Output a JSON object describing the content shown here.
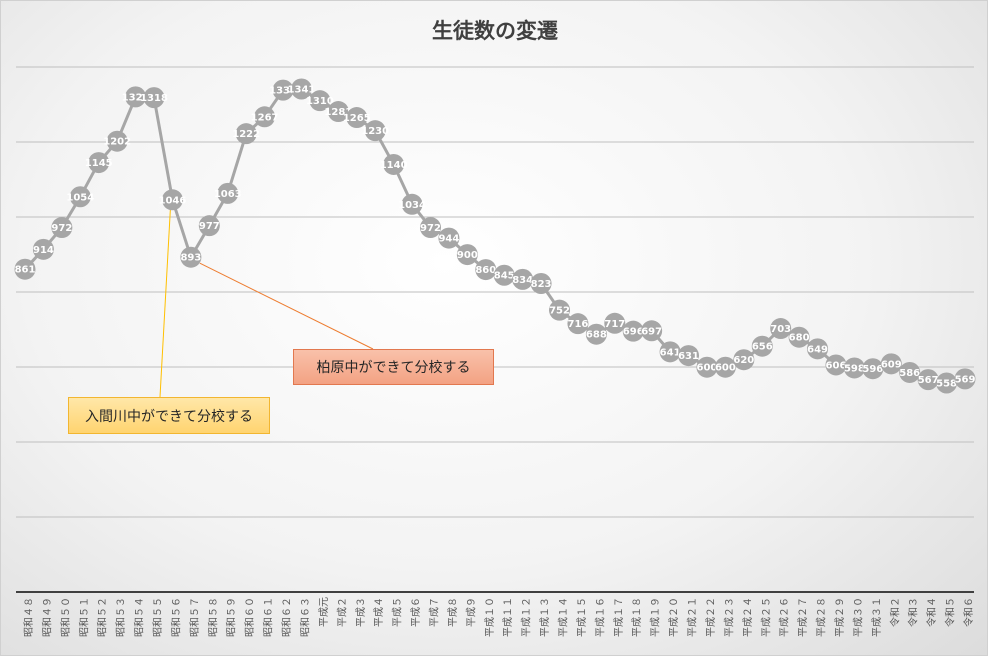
{
  "chart_data": {
    "type": "line",
    "title": "生徒数の変遷",
    "xlabel": "",
    "ylabel": "",
    "grid": true,
    "x": [
      "昭和４８",
      "昭和４９",
      "昭和５０",
      "昭和５１",
      "昭和５２",
      "昭和５３",
      "昭和５４",
      "昭和５５",
      "昭和５６",
      "昭和５７",
      "昭和５８",
      "昭和５９",
      "昭和６０",
      "昭和６１",
      "昭和６２",
      "昭和６３",
      "平成元",
      "平成２",
      "平成３",
      "平成４",
      "平成５",
      "平成６",
      "平成７",
      "平成８",
      "平成９",
      "平成１０",
      "平成１１",
      "平成１２",
      "平成１３",
      "平成１４",
      "平成１５",
      "平成１６",
      "平成１７",
      "平成１８",
      "平成１９",
      "平成２０",
      "平成２１",
      "平成２２",
      "平成２３",
      "平成２４",
      "平成２５",
      "平成２６",
      "平成２７",
      "平成２８",
      "平成２９",
      "平成３０",
      "平成３１",
      "令和２",
      "令和３",
      "令和４",
      "令和５",
      "令和６"
    ],
    "series": [
      {
        "name": "",
        "color": "#a6a6a6",
        "values": [
          861,
          914,
          972,
          1054,
          1145,
          1202,
          1320,
          1318,
          1046,
          893,
          977,
          1063,
          1222,
          1267,
          1338,
          1341,
          1310,
          1281,
          1265,
          1230,
          1140,
          1034,
          972,
          944,
          900,
          860,
          845,
          834,
          823,
          752,
          716,
          688,
          717,
          696,
          697,
          641,
          631,
          600,
          600,
          620,
          656,
          703,
          680,
          649,
          606,
          598,
          596,
          609,
          586,
          567,
          558,
          569
        ]
      }
    ],
    "annotations": [
      {
        "id": "kashiwara",
        "text": "柏原中ができて分校する",
        "target": "昭和５７",
        "color": "#f4a07e",
        "line_color": "#ed7d31"
      },
      {
        "id": "iruma",
        "text": "入間川中ができて分校する",
        "target": "昭和５６",
        "color": "#ffd966",
        "line_color": "#ffc000"
      }
    ]
  }
}
